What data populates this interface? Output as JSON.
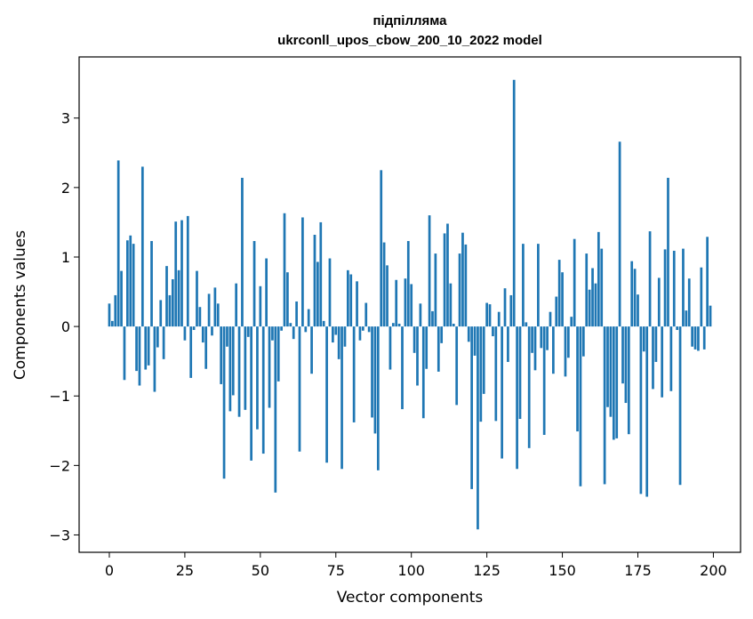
{
  "chart_data": {
    "type": "bar",
    "title": "підпілляма",
    "subtitle": "ukrconll_upos_cbow_200_10_2022 model",
    "xlabel": "Vector components",
    "ylabel": "Components values",
    "xlim": [
      -10,
      209
    ],
    "ylim": [
      -3.25,
      3.88
    ],
    "xticks": [
      0,
      25,
      50,
      75,
      100,
      125,
      150,
      175,
      200
    ],
    "yticks": [
      -3,
      -2,
      -1,
      0,
      1,
      2,
      3
    ],
    "xtick_labels": [
      "0",
      "25",
      "50",
      "75",
      "100",
      "125",
      "150",
      "175",
      "200"
    ],
    "ytick_labels": [
      "−3",
      "−2",
      "−1",
      "0",
      "1",
      "2",
      "3"
    ],
    "bar_color": "#1f77b4",
    "values": [
      0.33,
      0.08,
      0.45,
      2.39,
      0.8,
      -0.77,
      1.24,
      1.31,
      1.19,
      -0.64,
      -0.85,
      2.3,
      -0.62,
      -0.56,
      1.23,
      -0.94,
      -0.3,
      0.38,
      -0.47,
      0.87,
      0.45,
      0.68,
      1.51,
      0.81,
      1.53,
      -0.2,
      1.59,
      -0.74,
      -0.05,
      0.8,
      0.28,
      -0.23,
      -0.61,
      0.47,
      -0.13,
      0.56,
      0.33,
      -0.83,
      -2.19,
      -0.29,
      -1.22,
      -0.99,
      0.62,
      -1.3,
      2.14,
      -1.2,
      -0.15,
      -1.93,
      1.23,
      -1.48,
      0.58,
      -1.83,
      0.98,
      -1.17,
      -0.2,
      -2.39,
      -0.79,
      -0.06,
      1.63,
      0.78,
      0.05,
      -0.18,
      0.36,
      -1.8,
      1.57,
      -0.08,
      0.25,
      -0.68,
      1.32,
      0.93,
      1.5,
      0.08,
      -1.96,
      0.98,
      -0.23,
      -0.12,
      -0.47,
      -2.05,
      -0.29,
      0.81,
      0.75,
      -1.38,
      0.65,
      -0.2,
      -0.06,
      0.34,
      -0.08,
      -1.31,
      -1.54,
      -2.07,
      2.25,
      1.21,
      0.88,
      -0.62,
      0.05,
      0.67,
      0.04,
      -1.19,
      0.69,
      1.23,
      0.61,
      -0.38,
      -0.85,
      0.33,
      -1.32,
      -0.61,
      1.6,
      0.22,
      1.05,
      -0.65,
      -0.24,
      1.34,
      1.48,
      0.62,
      0.04,
      -1.13,
      1.05,
      1.35,
      1.18,
      -0.22,
      -2.34,
      -0.42,
      -2.92,
      -1.37,
      -0.97,
      0.34,
      0.32,
      -0.14,
      -1.36,
      0.21,
      -1.9,
      0.55,
      -0.51,
      0.45,
      3.55,
      -2.05,
      -1.33,
      1.19,
      0.06,
      -1.75,
      -0.38,
      -0.63,
      1.19,
      -0.31,
      -1.56,
      -0.34,
      0.21,
      -0.68,
      0.43,
      0.96,
      0.78,
      -0.72,
      -0.45,
      0.14,
      1.26,
      -1.51,
      -2.3,
      -0.43,
      1.05,
      0.53,
      0.84,
      0.62,
      1.36,
      1.12,
      -2.27,
      -1.16,
      -1.3,
      -1.63,
      -1.61,
      2.66,
      -0.82,
      -1.1,
      -1.55,
      0.94,
      0.83,
      0.46,
      -2.41,
      -0.36,
      -2.45,
      1.37,
      -0.9,
      -0.51,
      0.7,
      -1.02,
      1.11,
      2.14,
      -0.93,
      1.09,
      -0.05,
      -2.28,
      1.12,
      0.23,
      0.69,
      -0.29,
      -0.33,
      -0.35,
      0.85,
      -0.33,
      1.29,
      0.3
    ]
  }
}
